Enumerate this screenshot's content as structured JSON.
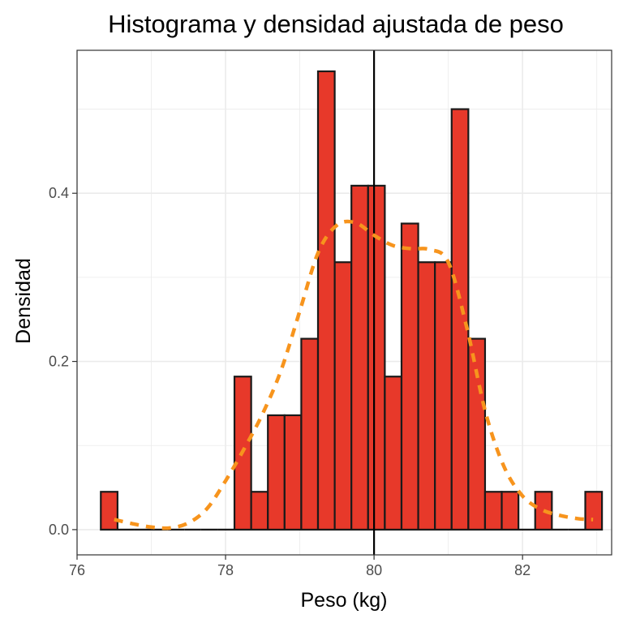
{
  "chart_data": {
    "type": "bar",
    "subtype": "histogram_with_density",
    "title": "Histograma y densidad ajustada de peso",
    "xlabel": "Peso (kg)",
    "ylabel": "Densidad",
    "xlim": [
      76,
      83.2
    ],
    "ylim": [
      -0.03,
      0.57
    ],
    "x_ticks": [
      76,
      78,
      80,
      82
    ],
    "x_tick_labels": [
      "76",
      "78",
      "80",
      "82"
    ],
    "y_ticks": [
      0.0,
      0.2,
      0.4
    ],
    "y_tick_labels": [
      "0.0",
      "0.2",
      "0.4"
    ],
    "grid": true,
    "bins": [
      {
        "start": 76.32,
        "end": 76.545,
        "density": 0.045
      },
      {
        "start": 76.545,
        "end": 76.77,
        "density": 0.0
      },
      {
        "start": 76.77,
        "end": 76.995,
        "density": 0.0
      },
      {
        "start": 76.995,
        "end": 77.22,
        "density": 0.0
      },
      {
        "start": 77.22,
        "end": 77.445,
        "density": 0.0
      },
      {
        "start": 77.445,
        "end": 77.67,
        "density": 0.0
      },
      {
        "start": 77.67,
        "end": 77.895,
        "density": 0.0
      },
      {
        "start": 77.895,
        "end": 78.12,
        "density": 0.0
      },
      {
        "start": 78.12,
        "end": 78.345,
        "density": 0.182
      },
      {
        "start": 78.345,
        "end": 78.57,
        "density": 0.045
      },
      {
        "start": 78.57,
        "end": 78.795,
        "density": 0.136
      },
      {
        "start": 78.795,
        "end": 79.02,
        "density": 0.136
      },
      {
        "start": 79.02,
        "end": 79.245,
        "density": 0.227
      },
      {
        "start": 79.245,
        "end": 79.47,
        "density": 0.545
      },
      {
        "start": 79.47,
        "end": 79.695,
        "density": 0.318
      },
      {
        "start": 79.695,
        "end": 79.92,
        "density": 0.409
      },
      {
        "start": 79.92,
        "end": 80.145,
        "density": 0.409
      },
      {
        "start": 80.145,
        "end": 80.37,
        "density": 0.182
      },
      {
        "start": 80.37,
        "end": 80.595,
        "density": 0.364
      },
      {
        "start": 80.595,
        "end": 80.82,
        "density": 0.318
      },
      {
        "start": 80.82,
        "end": 81.045,
        "density": 0.318
      },
      {
        "start": 81.045,
        "end": 81.27,
        "density": 0.5
      },
      {
        "start": 81.27,
        "end": 81.495,
        "density": 0.227
      },
      {
        "start": 81.495,
        "end": 81.72,
        "density": 0.045
      },
      {
        "start": 81.72,
        "end": 81.945,
        "density": 0.045
      },
      {
        "start": 81.945,
        "end": 82.17,
        "density": 0.0
      },
      {
        "start": 82.17,
        "end": 82.395,
        "density": 0.045
      },
      {
        "start": 82.395,
        "end": 82.62,
        "density": 0.0
      },
      {
        "start": 82.62,
        "end": 82.845,
        "density": 0.0
      },
      {
        "start": 82.845,
        "end": 83.07,
        "density": 0.045
      }
    ],
    "density_curve": {
      "x": [
        76.5,
        76.75,
        77.0,
        77.25,
        77.5,
        77.75,
        78.0,
        78.25,
        78.5,
        78.75,
        79.0,
        79.25,
        79.5,
        79.75,
        80.0,
        80.25,
        80.5,
        80.75,
        81.0,
        81.25,
        81.5,
        81.75,
        82.0,
        82.25,
        82.5,
        82.75,
        82.95
      ],
      "y": [
        0.012,
        0.007,
        0.003,
        0.002,
        0.008,
        0.025,
        0.058,
        0.096,
        0.138,
        0.19,
        0.26,
        0.33,
        0.362,
        0.365,
        0.35,
        0.338,
        0.334,
        0.333,
        0.318,
        0.24,
        0.14,
        0.075,
        0.04,
        0.024,
        0.017,
        0.013,
        0.012
      ]
    },
    "vline_x": 80,
    "colors": {
      "bar_fill": "#e7392a",
      "bar_outline": "#1a1a1a",
      "density_line": "#f7941d",
      "vline": "#000000",
      "grid": "#ebebeb",
      "panel_border": "#333333"
    }
  }
}
